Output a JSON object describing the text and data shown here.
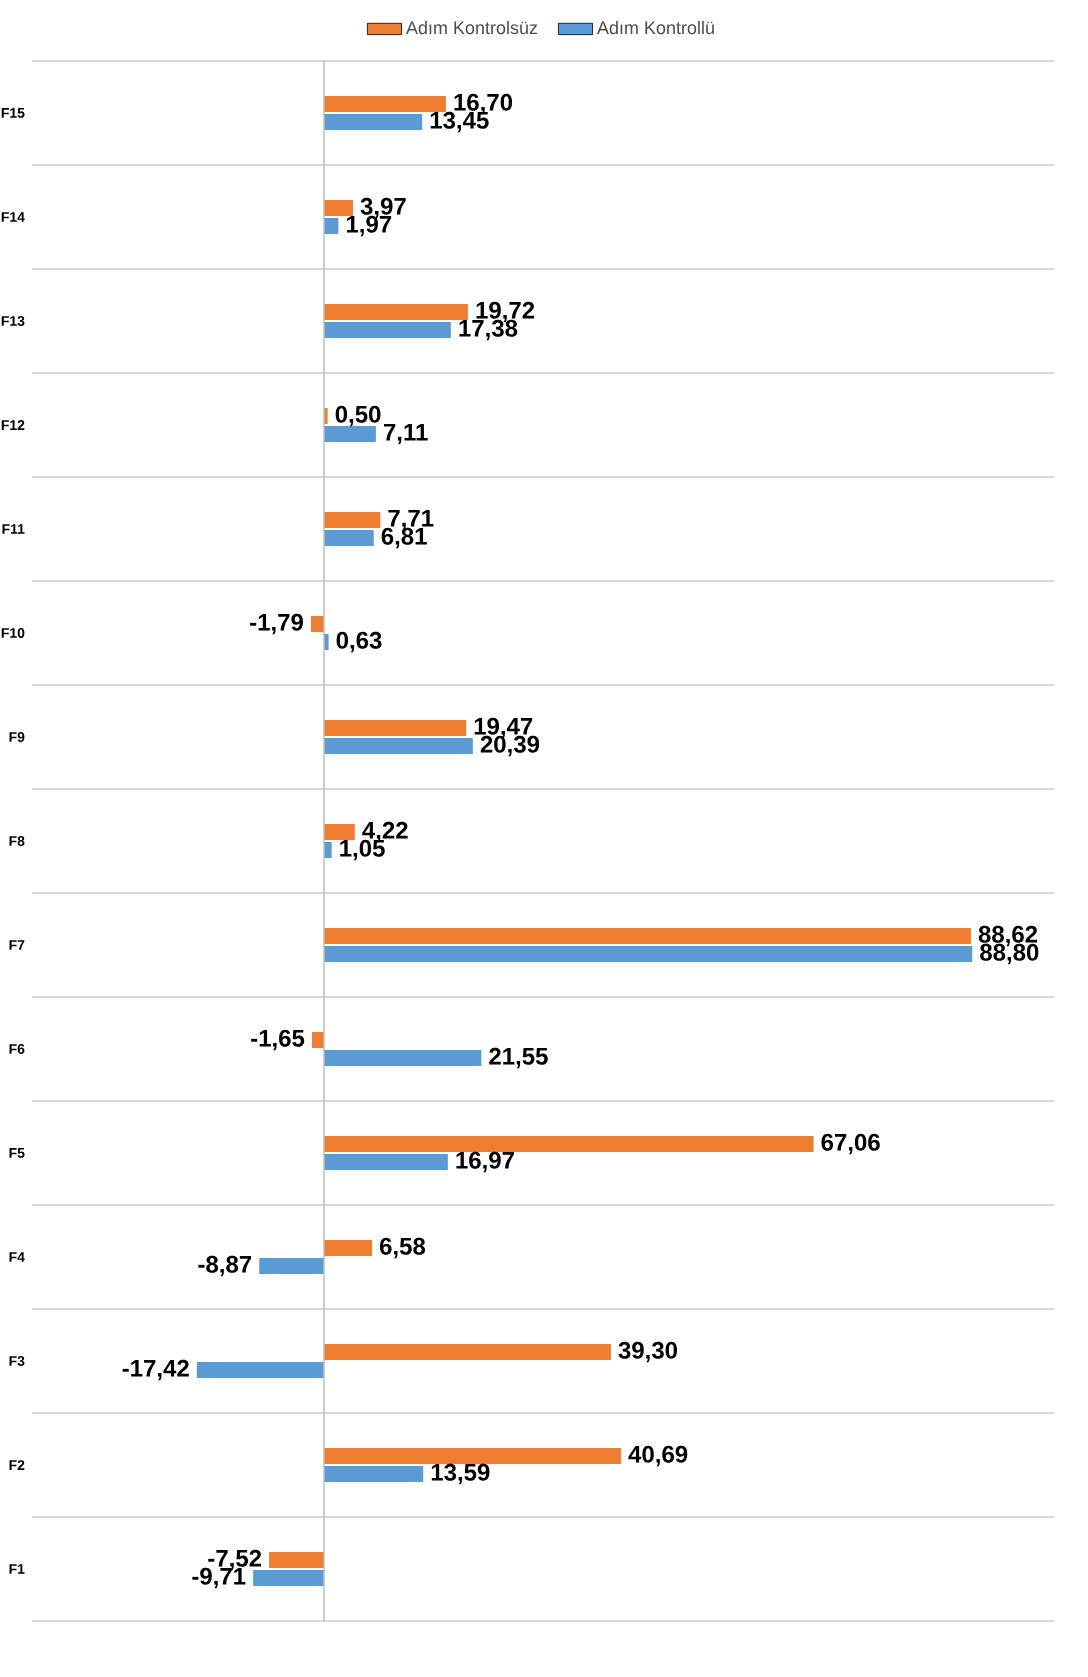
{
  "chart_data": {
    "type": "bar",
    "orientation": "horizontal",
    "categories": [
      "F15",
      "F14",
      "F13",
      "F12",
      "F11",
      "F10",
      "F9",
      "F8",
      "F7",
      "F6",
      "F5",
      "F4",
      "F3",
      "F2",
      "F1"
    ],
    "series": [
      {
        "name": "Adım Kontrolsüz",
        "color": "#ed7d31",
        "values": [
          16.7,
          3.97,
          19.72,
          0.5,
          7.71,
          -1.79,
          19.47,
          4.22,
          88.62,
          -1.65,
          67.06,
          6.58,
          39.3,
          40.69,
          -7.52
        ],
        "value_labels": [
          "16,70",
          "3,97",
          "19,72",
          "0,50",
          "7,71",
          "-1,79",
          "19,47",
          "4,22",
          "88,62",
          "-1,65",
          "67,06",
          "6,58",
          "39,30",
          "40,69",
          "-7,52"
        ]
      },
      {
        "name": "Adım Kontrollü",
        "color": "#5b9bd5",
        "values": [
          13.45,
          1.97,
          17.38,
          7.11,
          6.81,
          0.63,
          20.39,
          1.05,
          88.8,
          21.55,
          16.97,
          -8.87,
          -17.42,
          13.59,
          -9.71
        ],
        "value_labels": [
          "13,45",
          "1,97",
          "17,38",
          "7,11",
          "6,81",
          "0,63",
          "20,39",
          "1,05",
          "88,80",
          "21,55",
          "16,97",
          "-8,87",
          "-17,42",
          "13,59",
          "-9,71"
        ]
      }
    ],
    "xlim": [
      -40,
      100
    ],
    "tick_labels": "y",
    "grid": "y",
    "legend": "top"
  }
}
